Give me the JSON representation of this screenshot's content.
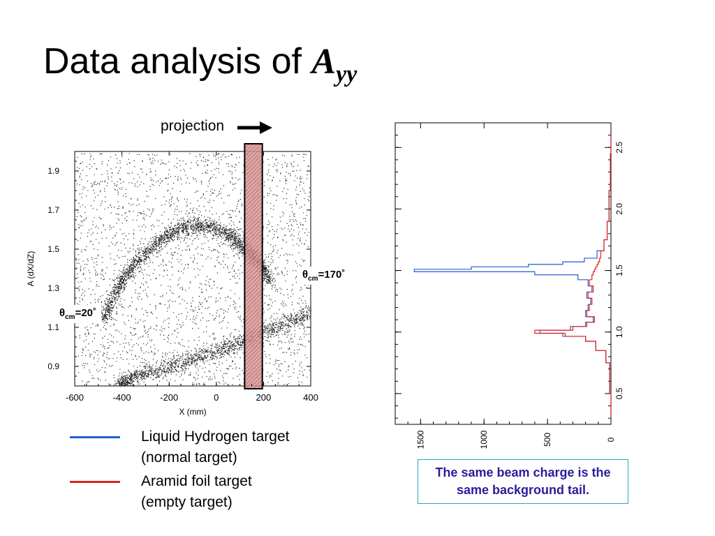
{
  "slide": {
    "title_text": "Data analysis of ",
    "title_math": "A",
    "title_sub": "yy",
    "projection_label": "projection",
    "theta_left": {
      "symbol": "θ",
      "sub": "cm",
      "value": "=20˚"
    },
    "theta_right": {
      "symbol": "θ",
      "sub": "cm",
      "value": "=170˚"
    },
    "legend": [
      {
        "line1": "Liquid Hydrogen target",
        "line2": "(normal target)",
        "color": "#1f5fd6"
      },
      {
        "line1": "Aramid foil target",
        "line2": "(empty target)",
        "color": "#e32020"
      }
    ],
    "note": "The same beam charge is the same background tail.",
    "colors": {
      "projection_band": "#c97a7a",
      "note_border": "#2aa7b5",
      "note_text": "#2a1d9a"
    }
  },
  "chart_data": [
    {
      "type": "scatter",
      "title": "",
      "xlabel": "X (mm)",
      "ylabel": "A (dX/dZ)",
      "xlim": [
        -600,
        400
      ],
      "ylim": [
        0.8,
        2.0
      ],
      "xticks": [
        "-600",
        "-400",
        "-200",
        "0",
        "200",
        "400"
      ],
      "yticks": [
        "0.9",
        "1.1",
        "1.3",
        "1.5",
        "1.7",
        "1.9"
      ],
      "projection_band_x": [
        120,
        195
      ],
      "loci": [
        {
          "points": [
            [
              -480,
              1.15
            ],
            [
              -420,
              1.3
            ],
            [
              -350,
              1.42
            ],
            [
              -250,
              1.54
            ],
            [
              -150,
              1.61
            ],
            [
              -50,
              1.62
            ],
            [
              50,
              1.58
            ],
            [
              120,
              1.5
            ],
            [
              180,
              1.44
            ],
            [
              230,
              1.33
            ]
          ]
        },
        {
          "points": [
            [
              -420,
              0.8
            ],
            [
              -350,
              0.85
            ],
            [
              -200,
              0.9
            ],
            [
              -50,
              0.96
            ],
            [
              100,
              1.02
            ],
            [
              250,
              1.1
            ],
            [
              400,
              1.18
            ]
          ]
        }
      ],
      "background_density": 2600
    },
    {
      "type": "line",
      "title": "",
      "rotated": true,
      "xlabel": "",
      "ylabel": "",
      "xlim": [
        0.25,
        2.7
      ],
      "ylim": [
        0,
        1700
      ],
      "xticks": [
        "0.5",
        "1.0",
        "1.5",
        "2.0",
        "2.5"
      ],
      "yticks": [
        "0",
        "500",
        "1000",
        "1500"
      ],
      "series": [
        {
          "color": "#1f5fd6",
          "x": [
            0.3,
            0.7,
            0.8,
            0.9,
            0.95,
            0.98,
            1.0,
            1.03,
            1.06,
            1.1,
            1.15,
            1.2,
            1.25,
            1.3,
            1.35,
            1.4,
            1.45,
            1.48,
            1.5,
            1.52,
            1.54,
            1.56,
            1.58,
            1.62,
            1.7,
            1.8,
            2.0,
            2.3,
            2.6
          ],
          "y": [
            0,
            10,
            40,
            120,
            200,
            380,
            560,
            320,
            200,
            140,
            200,
            180,
            160,
            190,
            150,
            180,
            260,
            600,
            1550,
            1100,
            650,
            380,
            210,
            110,
            55,
            30,
            15,
            5,
            0
          ]
        },
        {
          "color": "#e32020",
          "x": [
            0.3,
            0.7,
            0.8,
            0.9,
            0.95,
            0.98,
            1.0,
            1.03,
            1.06,
            1.1,
            1.15,
            1.2,
            1.25,
            1.3,
            1.35,
            1.4,
            1.45,
            1.48,
            1.5,
            1.52,
            1.54,
            1.56,
            1.58,
            1.62,
            1.7,
            1.8,
            2.0,
            2.3,
            2.6
          ],
          "y": [
            0,
            10,
            40,
            120,
            200,
            360,
            600,
            300,
            190,
            130,
            190,
            170,
            150,
            180,
            140,
            170,
            150,
            140,
            130,
            120,
            110,
            100,
            90,
            80,
            55,
            30,
            15,
            5,
            0
          ]
        }
      ]
    }
  ]
}
